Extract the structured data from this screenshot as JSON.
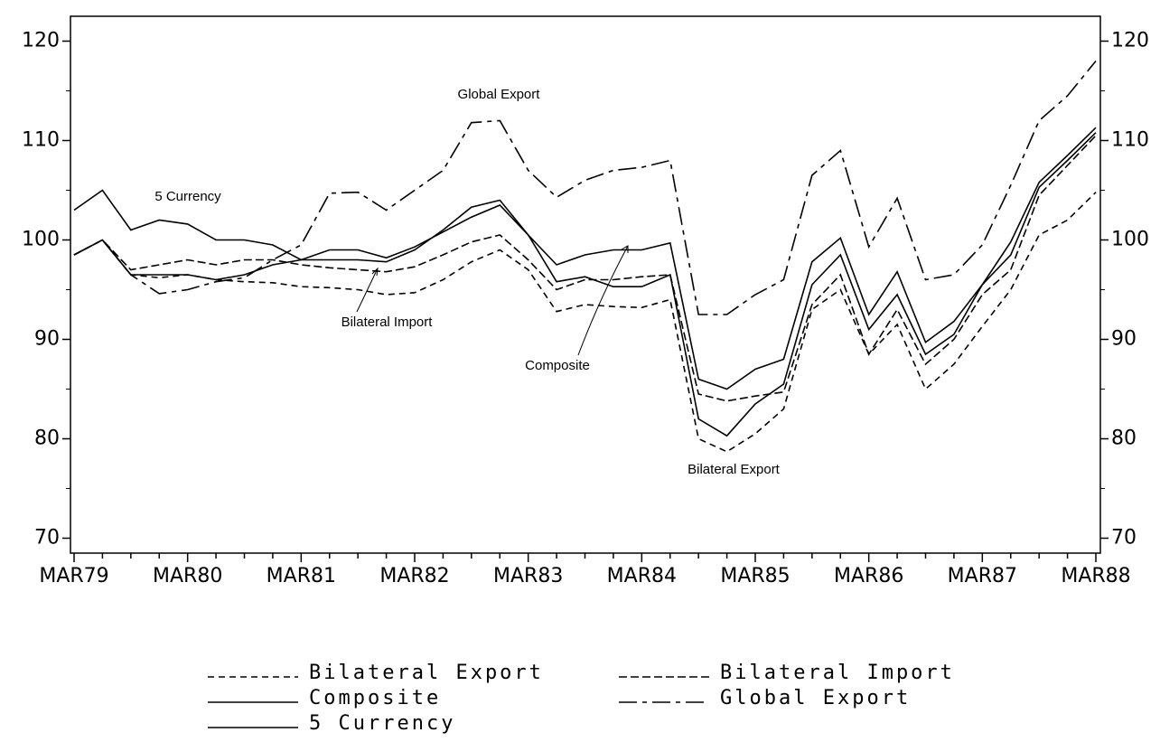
{
  "chart_data": {
    "type": "line",
    "categories": [
      "MAR79",
      null,
      null,
      null,
      "MAR80",
      null,
      null,
      null,
      "MAR81",
      null,
      null,
      null,
      "MAR82",
      null,
      null,
      null,
      "MAR83",
      null,
      null,
      null,
      "MAR84",
      null,
      null,
      null,
      "MAR85",
      null,
      null,
      null,
      "MAR86",
      null,
      null,
      null,
      "MAR87",
      null,
      null,
      null,
      "MAR88"
    ],
    "ylim": [
      68.5,
      122.5
    ],
    "yticks": [
      70,
      80,
      90,
      100,
      110,
      120
    ],
    "secondary_axis_mirrors_y": true,
    "color": "#000000",
    "series": [
      {
        "name": "Bilateral Export",
        "color": "#000000",
        "dash": "7,5",
        "values": [
          98.5,
          100,
          96.5,
          96.2,
          96.5,
          96,
          95.8,
          95.7,
          95.3,
          95.2,
          95,
          94.5,
          94.7,
          96,
          97.8,
          99,
          97,
          92.8,
          93.5,
          93.3,
          93.2,
          94,
          80,
          78.7,
          80.5,
          83,
          93,
          95,
          88.5,
          91.5,
          85,
          87.5,
          91.3,
          95,
          100.5,
          102,
          104.8
        ]
      },
      {
        "name": "Bilateral Import",
        "color": "#000000",
        "dash": "9,4",
        "values": [
          98.5,
          100,
          97,
          97.5,
          98,
          97.5,
          98,
          98,
          97.5,
          97.2,
          97,
          96.8,
          97.3,
          98.5,
          99.8,
          100.5,
          98,
          95,
          96,
          96,
          96.3,
          96.5,
          84.5,
          83.8,
          84.3,
          84.7,
          93.5,
          96.5,
          88.5,
          93,
          87.5,
          90,
          94.5,
          97,
          104.5,
          107.5,
          110.5
        ]
      },
      {
        "name": "Composite",
        "color": "#000000",
        "dash": "",
        "values": [
          98.5,
          100,
          96.5,
          96.5,
          96.5,
          96,
          96.5,
          97.5,
          98,
          99,
          99,
          98.2,
          99.3,
          100.8,
          102.3,
          103.5,
          100.5,
          95.8,
          96.3,
          95.3,
          95.3,
          96.5,
          82,
          80.3,
          83.5,
          85.5,
          95.5,
          98.5,
          91,
          94.5,
          88.5,
          90.5,
          95.5,
          98.5,
          105.3,
          108,
          110.8
        ]
      },
      {
        "name": "Global Export",
        "color": "#000000",
        "dash": "20,6,5,6",
        "values": [
          98.5,
          100,
          96.5,
          94.6,
          95,
          95.8,
          96.2,
          98,
          99.5,
          104.7,
          104.8,
          103,
          105,
          107,
          111.8,
          112,
          107,
          104.3,
          106,
          107,
          107.3,
          108,
          92.5,
          92.5,
          94.5,
          96,
          106.5,
          109,
          99.3,
          104.2,
          96,
          96.5,
          99.5,
          105.5,
          112,
          114.5,
          118
        ]
      },
      {
        "name": "5 Currency",
        "color": "#000000",
        "dash": "",
        "values": [
          103,
          105,
          101,
          102,
          101.6,
          100,
          100,
          99.5,
          98,
          98,
          98,
          97.8,
          99,
          101,
          103.3,
          104,
          100.5,
          97.5,
          98.5,
          99,
          99,
          99.7,
          86,
          85,
          87,
          88,
          97.8,
          100.2,
          92.5,
          96.8,
          89.7,
          91.8,
          95.5,
          99.8,
          105.8,
          108.5,
          111.3
        ]
      }
    ],
    "annotations": [
      "Global Export",
      "5 Currency",
      "Bilateral Import",
      "Composite",
      "Bilateral Export"
    ]
  }
}
